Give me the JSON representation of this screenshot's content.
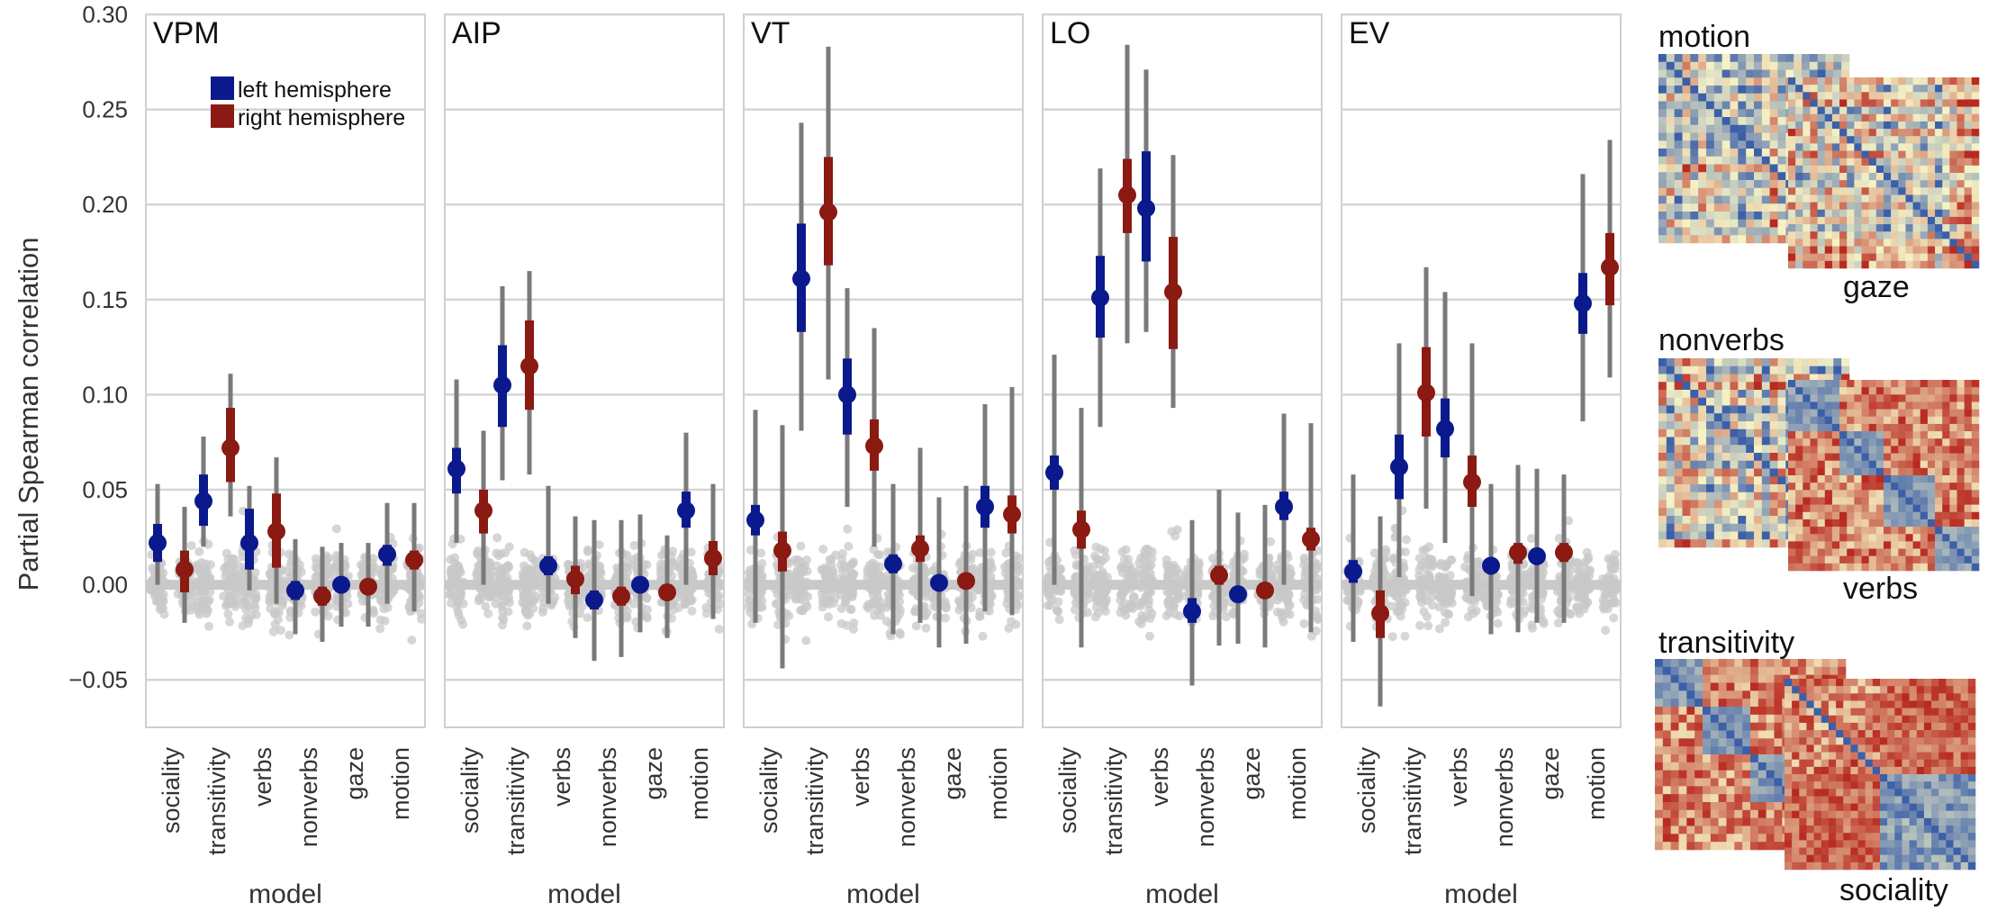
{
  "chart_data": {
    "type": "scatter",
    "ylabel": "Partial Spearman correlation",
    "xlabel": "model",
    "ylim": [
      -0.075,
      0.3
    ],
    "yticks": [
      0.3,
      0.25,
      0.2,
      0.15,
      0.1,
      0.05,
      0.0,
      -0.05
    ],
    "ytick_labels": [
      "0.30",
      "0.25",
      "0.20",
      "0.15",
      "0.10",
      "0.05",
      "0.00",
      "−0.05"
    ],
    "categories": [
      "sociality",
      "transitivity",
      "verbs",
      "nonverbs",
      "gaze",
      "motion"
    ],
    "legend": {
      "placement": "top-right of first panel",
      "entries": [
        {
          "label": "left hemisphere",
          "color": "#0a1a8c"
        },
        {
          "label": "right hemisphere",
          "color": "#8a1a12"
        }
      ]
    },
    "colors": {
      "left": "#0a1a8c",
      "right": "#8a1a12",
      "ci": "#7a7a7a",
      "null": "#c8c8c8",
      "grid": "#d0d0d0"
    },
    "panels": [
      {
        "title": "VPM",
        "left": [
          {
            "m": 0.022,
            "ci": [
              0.012,
              0.032
            ],
            "whisker": [
              0.0,
              0.053
            ]
          },
          {
            "m": 0.044,
            "ci": [
              0.031,
              0.058
            ],
            "whisker": [
              0.02,
              0.078
            ]
          },
          {
            "m": 0.022,
            "ci": [
              0.008,
              0.04
            ],
            "whisker": [
              -0.003,
              0.052
            ]
          },
          {
            "m": -0.003,
            "ci": [
              -0.008,
              0.002
            ],
            "whisker": [
              -0.026,
              0.024
            ]
          },
          {
            "m": 0.0,
            "ci": [
              -0.004,
              0.004
            ],
            "whisker": [
              -0.022,
              0.022
            ]
          },
          {
            "m": 0.016,
            "ci": [
              0.01,
              0.021
            ],
            "whisker": [
              -0.01,
              0.043
            ]
          }
        ],
        "right": [
          {
            "m": 0.008,
            "ci": [
              -0.004,
              0.018
            ],
            "whisker": [
              -0.02,
              0.041
            ]
          },
          {
            "m": 0.072,
            "ci": [
              0.054,
              0.093
            ],
            "whisker": [
              0.036,
              0.111
            ]
          },
          {
            "m": 0.028,
            "ci": [
              0.009,
              0.048
            ],
            "whisker": [
              -0.01,
              0.067
            ]
          },
          {
            "m": -0.006,
            "ci": [
              -0.011,
              -0.001
            ],
            "whisker": [
              -0.03,
              0.02
            ]
          },
          {
            "m": -0.001,
            "ci": [
              -0.004,
              0.003
            ],
            "whisker": [
              -0.022,
              0.022
            ]
          },
          {
            "m": 0.013,
            "ci": [
              0.008,
              0.018
            ],
            "whisker": [
              -0.014,
              0.043
            ]
          }
        ]
      },
      {
        "title": "AIP",
        "left": [
          {
            "m": 0.061,
            "ci": [
              0.048,
              0.072
            ],
            "whisker": [
              0.022,
              0.108
            ]
          },
          {
            "m": 0.105,
            "ci": [
              0.083,
              0.126
            ],
            "whisker": [
              0.055,
              0.157
            ]
          },
          {
            "m": 0.01,
            "ci": [
              0.005,
              0.015
            ],
            "whisker": [
              -0.01,
              0.052
            ]
          },
          {
            "m": -0.008,
            "ci": [
              -0.013,
              -0.003
            ],
            "whisker": [
              -0.04,
              0.034
            ]
          },
          {
            "m": 0.0,
            "ci": [
              -0.004,
              0.004
            ],
            "whisker": [
              -0.025,
              0.037
            ]
          },
          {
            "m": 0.039,
            "ci": [
              0.03,
              0.049
            ],
            "whisker": [
              0.0,
              0.08
            ]
          }
        ],
        "right": [
          {
            "m": 0.039,
            "ci": [
              0.027,
              0.05
            ],
            "whisker": [
              0.0,
              0.081
            ]
          },
          {
            "m": 0.115,
            "ci": [
              0.092,
              0.139
            ],
            "whisker": [
              0.058,
              0.165
            ]
          },
          {
            "m": 0.003,
            "ci": [
              -0.005,
              0.01
            ],
            "whisker": [
              -0.028,
              0.036
            ]
          },
          {
            "m": -0.006,
            "ci": [
              -0.011,
              -0.001
            ],
            "whisker": [
              -0.038,
              0.034
            ]
          },
          {
            "m": -0.004,
            "ci": [
              -0.007,
              -0.001
            ],
            "whisker": [
              -0.028,
              0.026
            ]
          },
          {
            "m": 0.014,
            "ci": [
              0.005,
              0.023
            ],
            "whisker": [
              -0.018,
              0.053
            ]
          }
        ]
      },
      {
        "title": "VT",
        "left": [
          {
            "m": 0.034,
            "ci": [
              0.026,
              0.042
            ],
            "whisker": [
              -0.02,
              0.092
            ]
          },
          {
            "m": 0.161,
            "ci": [
              0.133,
              0.19
            ],
            "whisker": [
              0.081,
              0.243
            ]
          },
          {
            "m": 0.1,
            "ci": [
              0.079,
              0.119
            ],
            "whisker": [
              0.041,
              0.156
            ]
          },
          {
            "m": 0.011,
            "ci": [
              0.006,
              0.016
            ],
            "whisker": [
              -0.026,
              0.053
            ]
          },
          {
            "m": 0.001,
            "ci": [
              -0.003,
              0.004
            ],
            "whisker": [
              -0.033,
              0.046
            ]
          },
          {
            "m": 0.041,
            "ci": [
              0.03,
              0.052
            ],
            "whisker": [
              -0.014,
              0.095
            ]
          }
        ],
        "right": [
          {
            "m": 0.018,
            "ci": [
              0.007,
              0.028
            ],
            "whisker": [
              -0.044,
              0.084
            ]
          },
          {
            "m": 0.196,
            "ci": [
              0.168,
              0.225
            ],
            "whisker": [
              0.108,
              0.283
            ]
          },
          {
            "m": 0.073,
            "ci": [
              0.06,
              0.087
            ],
            "whisker": [
              0.02,
              0.135
            ]
          },
          {
            "m": 0.019,
            "ci": [
              0.012,
              0.026
            ],
            "whisker": [
              -0.02,
              0.072
            ]
          },
          {
            "m": 0.002,
            "ci": [
              -0.002,
              0.006
            ],
            "whisker": [
              -0.031,
              0.052
            ]
          },
          {
            "m": 0.037,
            "ci": [
              0.027,
              0.047
            ],
            "whisker": [
              -0.016,
              0.104
            ]
          }
        ]
      },
      {
        "title": "LO",
        "left": [
          {
            "m": 0.059,
            "ci": [
              0.05,
              0.068
            ],
            "whisker": [
              0.0,
              0.121
            ]
          },
          {
            "m": 0.151,
            "ci": [
              0.13,
              0.173
            ],
            "whisker": [
              0.083,
              0.219
            ]
          },
          {
            "m": 0.198,
            "ci": [
              0.17,
              0.228
            ],
            "whisker": [
              0.133,
              0.271
            ]
          },
          {
            "m": -0.014,
            "ci": [
              -0.02,
              -0.007
            ],
            "whisker": [
              -0.053,
              0.034
            ]
          },
          {
            "m": -0.005,
            "ci": [
              -0.009,
              -0.001
            ],
            "whisker": [
              -0.031,
              0.038
            ]
          },
          {
            "m": 0.041,
            "ci": [
              0.034,
              0.049
            ],
            "whisker": [
              0.0,
              0.09
            ]
          }
        ],
        "right": [
          {
            "m": 0.029,
            "ci": [
              0.019,
              0.039
            ],
            "whisker": [
              -0.033,
              0.093
            ]
          },
          {
            "m": 0.205,
            "ci": [
              0.185,
              0.224
            ],
            "whisker": [
              0.127,
              0.284
            ]
          },
          {
            "m": 0.154,
            "ci": [
              0.124,
              0.183
            ],
            "whisker": [
              0.093,
              0.226
            ]
          },
          {
            "m": 0.005,
            "ci": [
              0.0,
              0.01
            ],
            "whisker": [
              -0.032,
              0.05
            ]
          },
          {
            "m": -0.003,
            "ci": [
              -0.005,
              0.0
            ],
            "whisker": [
              -0.033,
              0.042
            ]
          },
          {
            "m": 0.024,
            "ci": [
              0.018,
              0.03
            ],
            "whisker": [
              -0.025,
              0.085
            ]
          }
        ]
      },
      {
        "title": "EV",
        "left": [
          {
            "m": 0.007,
            "ci": [
              0.001,
              0.013
            ],
            "whisker": [
              -0.03,
              0.058
            ]
          },
          {
            "m": 0.062,
            "ci": [
              0.045,
              0.079
            ],
            "whisker": [
              0.004,
              0.127
            ]
          },
          {
            "m": 0.082,
            "ci": [
              0.067,
              0.098
            ],
            "whisker": [
              0.022,
              0.154
            ]
          },
          {
            "m": 0.01,
            "ci": [
              0.006,
              0.014
            ],
            "whisker": [
              -0.026,
              0.053
            ]
          },
          {
            "m": 0.015,
            "ci": [
              0.011,
              0.019
            ],
            "whisker": [
              -0.02,
              0.061
            ]
          },
          {
            "m": 0.148,
            "ci": [
              0.132,
              0.164
            ],
            "whisker": [
              0.086,
              0.216
            ]
          }
        ],
        "right": [
          {
            "m": -0.015,
            "ci": [
              -0.028,
              -0.003
            ],
            "whisker": [
              -0.064,
              0.036
            ]
          },
          {
            "m": 0.101,
            "ci": [
              0.078,
              0.125
            ],
            "whisker": [
              0.04,
              0.167
            ]
          },
          {
            "m": 0.054,
            "ci": [
              0.041,
              0.068
            ],
            "whisker": [
              -0.006,
              0.127
            ]
          },
          {
            "m": 0.017,
            "ci": [
              0.011,
              0.022
            ],
            "whisker": [
              -0.025,
              0.063
            ]
          },
          {
            "m": 0.017,
            "ci": [
              0.012,
              0.022
            ],
            "whisker": [
              -0.02,
              0.058
            ]
          },
          {
            "m": 0.167,
            "ci": [
              0.147,
              0.185
            ],
            "whisker": [
              0.109,
              0.234
            ]
          }
        ]
      }
    ],
    "null_distribution_range": [
      -0.04,
      0.04
    ]
  },
  "rdm_panel": {
    "pairs": [
      {
        "label_top": "motion",
        "label_bottom": "gaze"
      },
      {
        "label_top": "nonverbs",
        "label_bottom": "verbs"
      },
      {
        "label_top": "transitivity",
        "label_bottom": "sociality"
      }
    ],
    "colors": {
      "low": "#3b5fa8",
      "mid": "#f6f3c6",
      "high": "#b8291f"
    }
  }
}
